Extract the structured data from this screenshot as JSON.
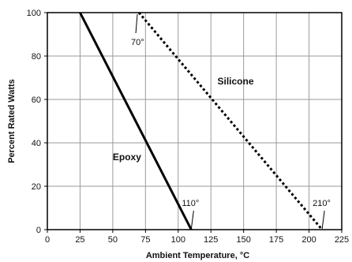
{
  "chart_data": {
    "type": "line",
    "title": "",
    "xlabel": "Ambient Temperature, °C",
    "ylabel": "Percent Rated Watts",
    "xlim": [
      0,
      225
    ],
    "ylim": [
      0,
      100
    ],
    "x_ticks": [
      0,
      25,
      50,
      75,
      100,
      125,
      150,
      175,
      200,
      225
    ],
    "y_ticks": [
      0,
      20,
      40,
      60,
      80,
      100
    ],
    "grid": true,
    "series": [
      {
        "name": "Epoxy",
        "style": "solid",
        "color": "#000000",
        "points": [
          [
            25,
            100
          ],
          [
            110,
            0
          ]
        ]
      },
      {
        "name": "Silicone",
        "style": "dotted",
        "color": "#000000",
        "points": [
          [
            70,
            100
          ],
          [
            210,
            0
          ]
        ]
      }
    ],
    "annotations": [
      {
        "text": "70°",
        "x": 70,
        "y": 100
      },
      {
        "text": "110°",
        "x": 110,
        "y": 0
      },
      {
        "text": "210°",
        "x": 210,
        "y": 0
      }
    ]
  }
}
